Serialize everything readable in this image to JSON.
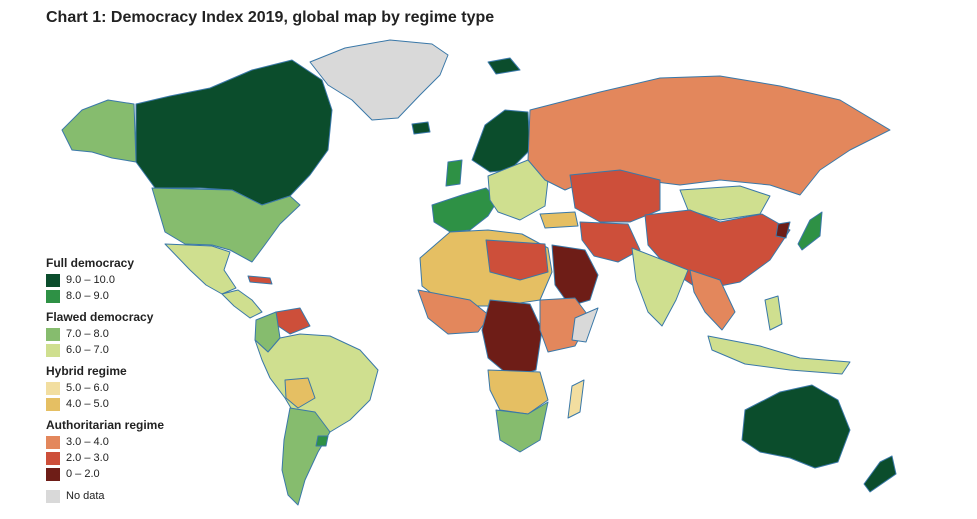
{
  "title": "Chart 1: Democracy Index 2019, global map by regime type",
  "legend": {
    "groups": [
      {
        "title": "Full democracy",
        "items": [
          {
            "label": "9.0 – 10.0",
            "color": "#0b4d2c"
          },
          {
            "label": "8.0 – 9.0",
            "color": "#2e9145"
          }
        ]
      },
      {
        "title": "Flawed democracy",
        "items": [
          {
            "label": "7.0 – 8.0",
            "color": "#86bc6e"
          },
          {
            "label": "6.0 – 7.0",
            "color": "#cfdf8f"
          }
        ]
      },
      {
        "title": "Hybrid regime",
        "items": [
          {
            "label": "5.0 – 6.0",
            "color": "#f2dea0"
          },
          {
            "label": "4.0 – 5.0",
            "color": "#e5bf63"
          }
        ]
      },
      {
        "title": "Authoritarian regime",
        "items": [
          {
            "label": "3.0 – 4.0",
            "color": "#e3875c"
          },
          {
            "label": "2.0 – 3.0",
            "color": "#cd4f3a"
          },
          {
            "label": "0 – 2.0",
            "color": "#6e1d17"
          }
        ]
      }
    ],
    "nodata": {
      "label": "No data",
      "color": "#d9d9d9"
    }
  }
}
